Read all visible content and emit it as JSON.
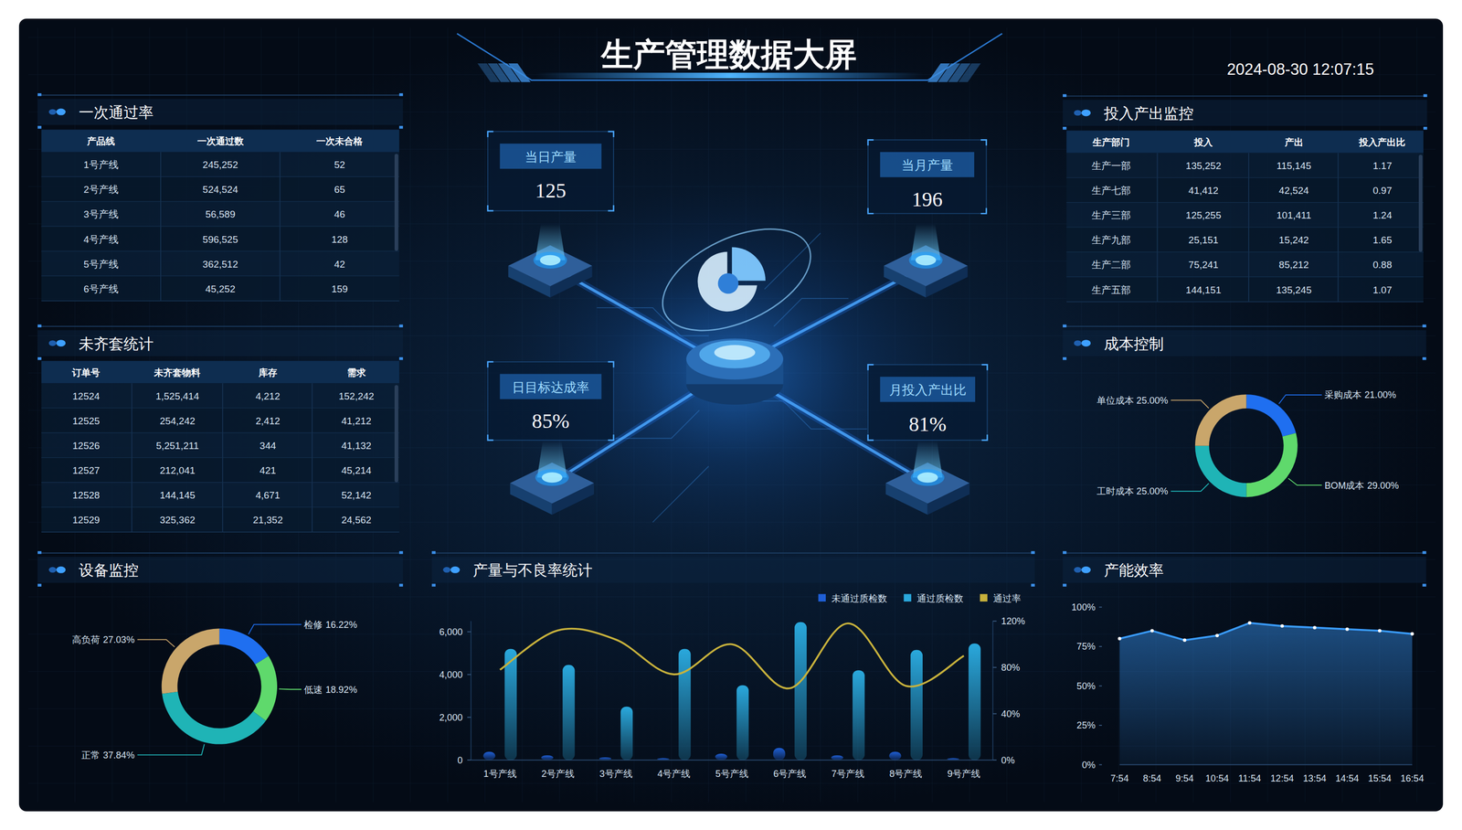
{
  "header": {
    "title": "生产管理数据大屏",
    "datetime": "2024-08-30 12:07:15"
  },
  "pass_rate_table": {
    "title": "一次通过率",
    "columns": [
      "产品线",
      "一次通过数",
      "一次未合格"
    ],
    "rows": [
      [
        "1号产线",
        "245,252",
        "52"
      ],
      [
        "2号产线",
        "524,524",
        "65"
      ],
      [
        "3号产线",
        "56,589",
        "46"
      ],
      [
        "4号产线",
        "596,525",
        "128"
      ],
      [
        "5号产线",
        "362,512",
        "42"
      ],
      [
        "6号产线",
        "45,252",
        "159"
      ]
    ]
  },
  "kitting_table": {
    "title": "未齐套统计",
    "columns": [
      "订单号",
      "未齐套物料",
      "库存",
      "需求"
    ],
    "rows": [
      [
        "12524",
        "1,525,414",
        "4,212",
        "152,242"
      ],
      [
        "12525",
        "254,242",
        "2,412",
        "41,212"
      ],
      [
        "12526",
        "5,251,211",
        "344",
        "41,132"
      ],
      [
        "12527",
        "212,041",
        "421",
        "45,214"
      ],
      [
        "12528",
        "144,145",
        "4,671",
        "52,142"
      ],
      [
        "12529",
        "325,362",
        "21,352",
        "24,562"
      ]
    ]
  },
  "io_table": {
    "title": "投入产出监控",
    "columns": [
      "生产部门",
      "投入",
      "产出",
      "投入产出比"
    ],
    "rows": [
      [
        "生产一部",
        "135,252",
        "115,145",
        "1.17"
      ],
      [
        "生产七部",
        "41,412",
        "42,524",
        "0.97"
      ],
      [
        "生产三部",
        "125,255",
        "101,411",
        "1.24"
      ],
      [
        "生产九部",
        "25,151",
        "15,242",
        "1.65"
      ],
      [
        "生产二部",
        "75,241",
        "85,212",
        "0.88"
      ],
      [
        "生产五部",
        "144,151",
        "135,245",
        "1.07"
      ]
    ]
  },
  "kpis": [
    {
      "label": "当日产量",
      "value": "125"
    },
    {
      "label": "当月产量",
      "value": "196"
    },
    {
      "label": "日目标达成率",
      "value": "85%"
    },
    {
      "label": "月投入产出比",
      "value": "81%"
    }
  ],
  "chart_data": [
    {
      "type": "donut",
      "title": "成本控制",
      "categories": [
        "采购成本",
        "BOM成本",
        "工时成本",
        "单位成本"
      ],
      "values": [
        21,
        29,
        25,
        25
      ],
      "value_labels": [
        "21.00%",
        "29.00%",
        "25.00%",
        "25.00%"
      ],
      "colors": [
        "#1f6ff0",
        "#5fd96c",
        "#1fb4b6",
        "#c9a66b"
      ]
    },
    {
      "type": "donut",
      "title": "设备监控",
      "categories": [
        "检修",
        "低速",
        "正常",
        "高负荷"
      ],
      "values": [
        16.22,
        18.92,
        37.84,
        27.03
      ],
      "value_labels": [
        "16.22%",
        "18.92%",
        "37.84%",
        "27.03%"
      ],
      "colors": [
        "#1f6ff0",
        "#5fd96c",
        "#1fb4b6",
        "#c9a66b"
      ]
    },
    {
      "type": "bar",
      "title": "产量与不良率统计",
      "categories": [
        "1号产线",
        "2号产线",
        "3号产线",
        "4号产线",
        "5号产线",
        "6号产线",
        "7号产线",
        "8号产线",
        "9号产线"
      ],
      "series": [
        {
          "name": "未通过质检数",
          "type": "bar",
          "color": "#1f5fd6",
          "values": [
            390,
            220,
            130,
            90,
            300,
            570,
            220,
            390,
            90
          ]
        },
        {
          "name": "通过质检数",
          "type": "bar",
          "color": "#2aa8dc",
          "values": [
            5200,
            4450,
            2500,
            5200,
            3500,
            6450,
            4200,
            5150,
            5450
          ]
        },
        {
          "name": "通过率",
          "type": "line",
          "axis": "y2",
          "color": "#c8b23c",
          "line_style": "smooth",
          "marker": "none",
          "values": [
            78,
            112,
            104,
            74,
            100,
            62,
            118,
            64,
            90
          ]
        }
      ],
      "ylim": [
        0,
        6500
      ],
      "yticks": [
        0,
        {
          "value": 2000,
          "label": "2,000"
        },
        {
          "value": 4000,
          "label": "4,000"
        },
        {
          "value": 6000,
          "label": "6,000"
        }
      ],
      "y2lim": [
        0,
        120
      ],
      "y2ticks": [
        {
          "value": 0,
          "label": "0%"
        },
        {
          "value": 40,
          "label": "40%"
        },
        {
          "value": 80,
          "label": "80%"
        },
        {
          "value": 120,
          "label": "120%"
        }
      ],
      "legend": "top-right",
      "grid": false
    },
    {
      "type": "area",
      "title": "产能效率",
      "categories": [
        "7:54",
        "8:54",
        "9:54",
        "10:54",
        "11:54",
        "12:54",
        "13:54",
        "14:54",
        "15:54",
        "16:54"
      ],
      "values": [
        80,
        85,
        79,
        82,
        90,
        88,
        87,
        86,
        85,
        83
      ],
      "color": "#3a9cff",
      "marker": "circle",
      "line_style": "solid",
      "ylim": [
        0,
        100
      ],
      "yticks": [
        {
          "value": 0,
          "label": "0%"
        },
        {
          "value": 25,
          "label": "25%"
        },
        {
          "value": 50,
          "label": "50%"
        },
        {
          "value": 75,
          "label": "75%"
        },
        {
          "value": 100,
          "label": "100%"
        }
      ],
      "grid": false
    }
  ]
}
